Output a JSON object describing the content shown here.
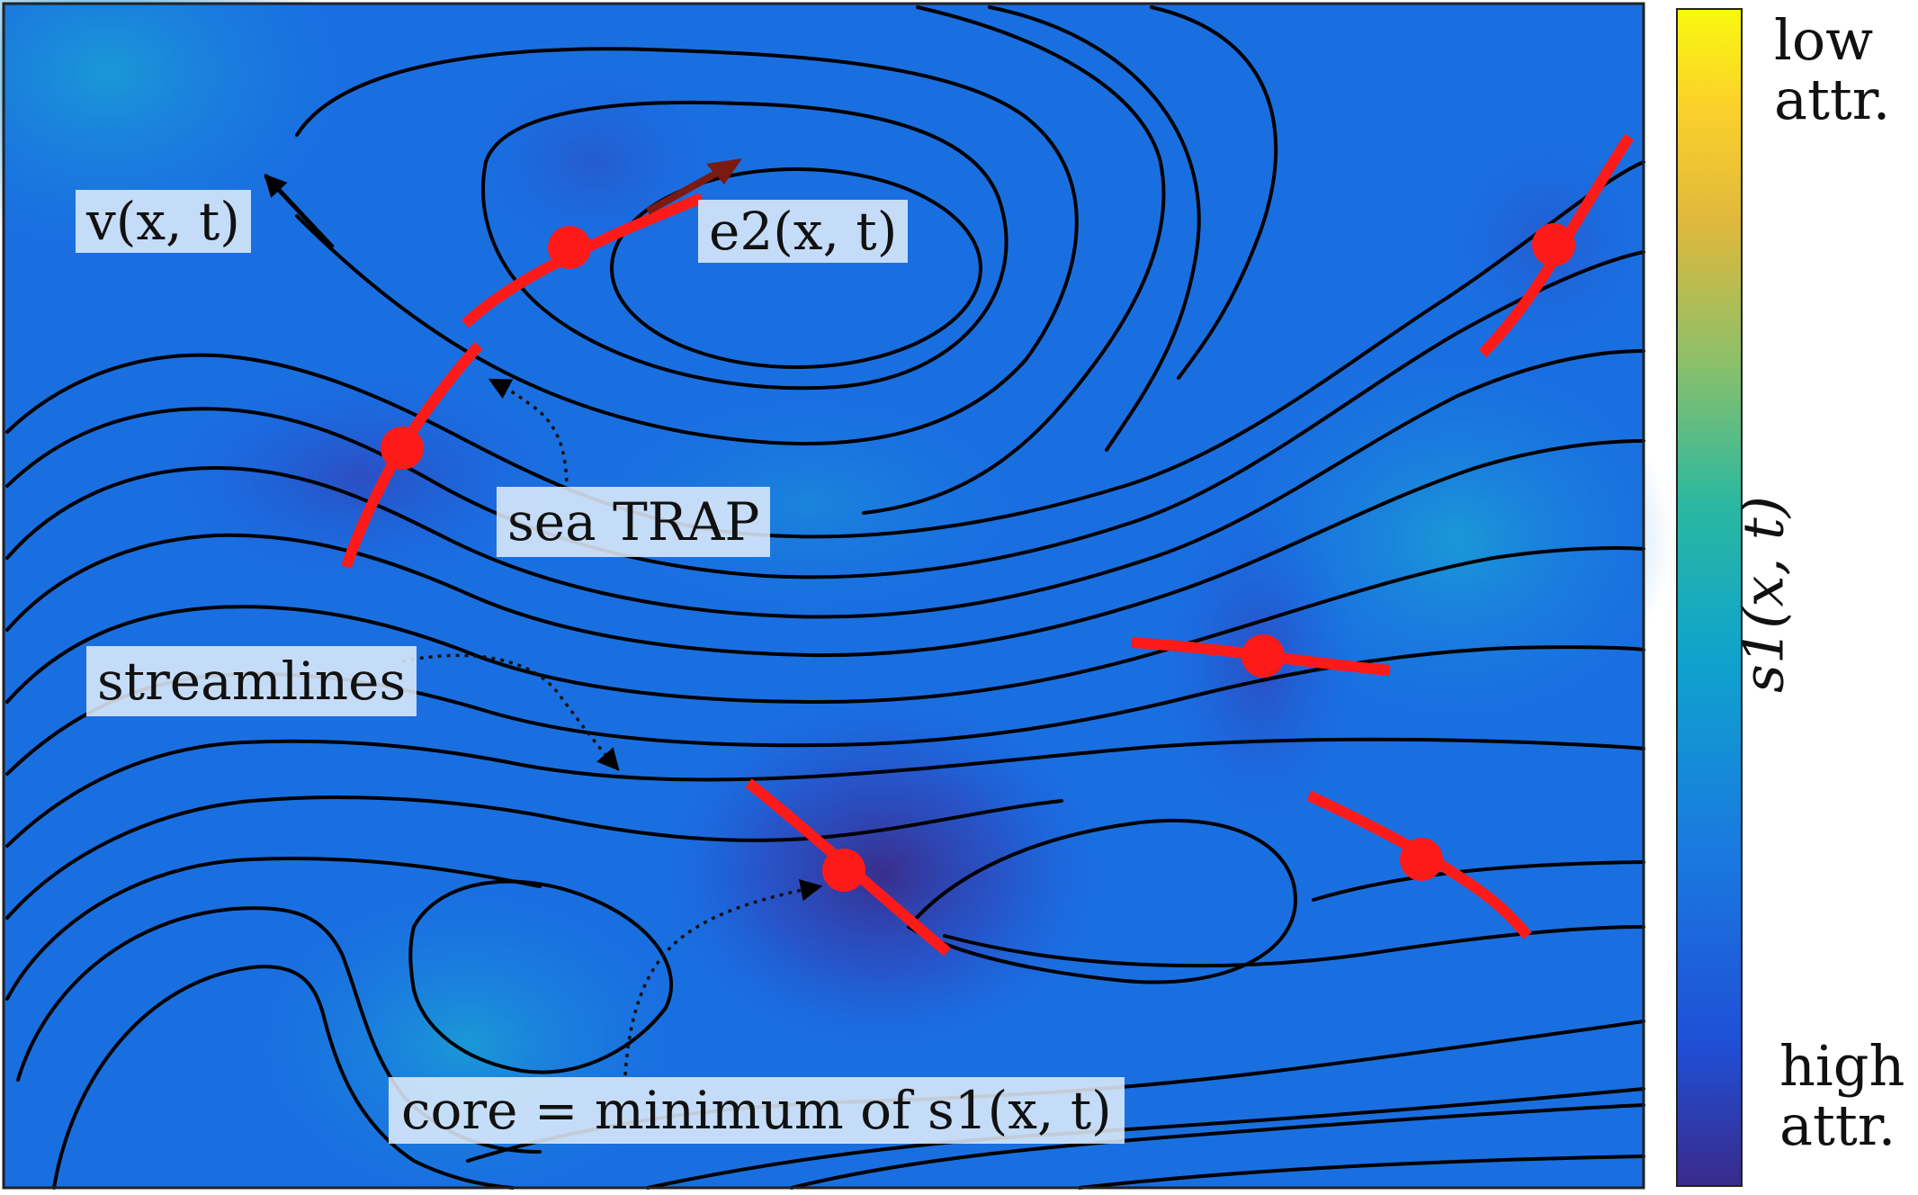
{
  "labels": {
    "velocity": "v(x, t)",
    "eigenvector": "e2(x, t)",
    "sea_trap": "sea TRAP",
    "streamlines": "streamlines",
    "core": "core = minimum of s1(x, t)"
  },
  "colorbar": {
    "top_label_line1": "low",
    "top_label_line2": "attr.",
    "bottom_label_line1": "high",
    "bottom_label_line2": "attr.",
    "axis_label": "s1(x, t)",
    "colors": [
      "#3a2a8a",
      "#1f4fd6",
      "#1a78e0",
      "#0fa3cc",
      "#2bb8a0",
      "#8cc06a",
      "#e0b83c",
      "#fbd22a",
      "#f9f90f"
    ]
  },
  "colors": {
    "background_field": "#1a6fe0",
    "streamline": "#000000",
    "trap_segment": "#ff1a1a",
    "eigenvector_arrow": "#7a1a10"
  }
}
